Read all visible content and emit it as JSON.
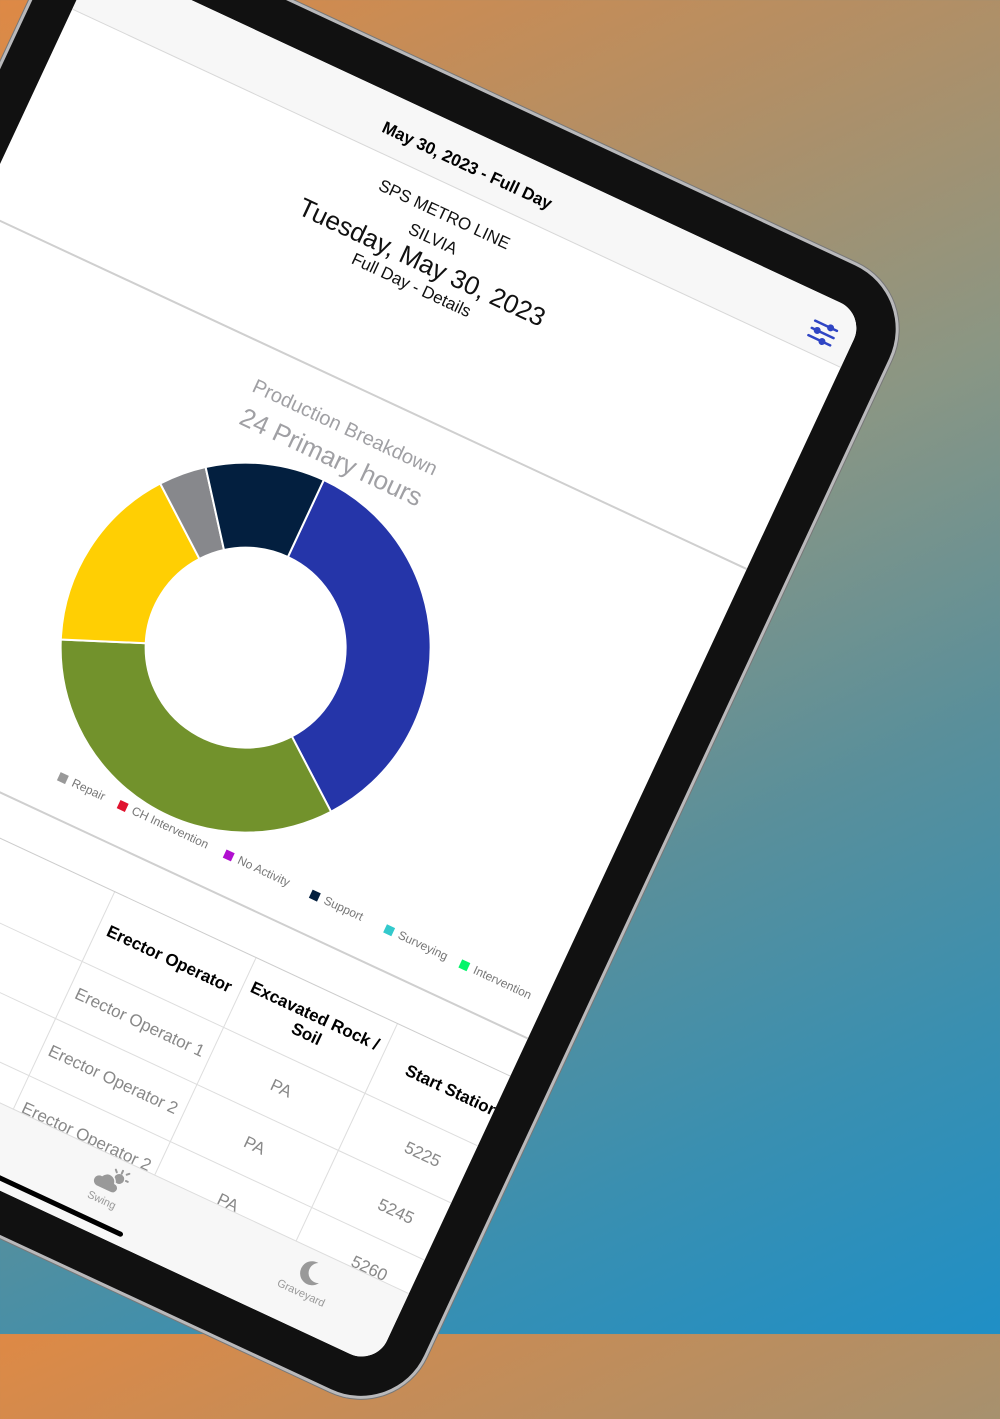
{
  "nav": {
    "title": "May 30, 2023 - Full Day",
    "filter_icon": "sliders-icon"
  },
  "header": {
    "project": "SPS METRO LINE",
    "machine": "SILVIA",
    "date": "Tuesday, May 30, 2023",
    "subtitle": "Full Day - Details"
  },
  "chart_data": {
    "type": "pie",
    "title": "Production Breakdown",
    "subtitle": "24 Primary hours",
    "total_hours": 24,
    "slices": [
      {
        "label": "",
        "value": 8.5,
        "color": "#2535a9"
      },
      {
        "label": "",
        "value": 8,
        "color": "#72922c"
      },
      {
        "label": "",
        "value": 4,
        "color": "#ffcf03"
      },
      {
        "label": "",
        "value": 1,
        "color": "#87888c"
      },
      {
        "label": "Support",
        "value": 2.5,
        "color": "#031f3f"
      }
    ],
    "legend": [
      {
        "label": "Repair",
        "color": "#999999"
      },
      {
        "label": "CH Intervention",
        "color": "#e0122e"
      },
      {
        "label": "No Activity",
        "color": "#b10fd0"
      },
      {
        "label": "Support",
        "color": "#031f3f"
      },
      {
        "label": "Surveying",
        "color": "#33c9cc"
      },
      {
        "label": "Intervention",
        "color": "#05f56a"
      }
    ],
    "legend_position": "bottom"
  },
  "table": {
    "headers": [
      "Erector Operator",
      "Excavated Rock / Soil",
      "Start Station"
    ],
    "rows": [
      [
        "Erector Operator 1",
        "PA",
        "5225"
      ],
      [
        "Erector Operator 2",
        "PA",
        "5245"
      ],
      [
        "Erector Operator 2",
        "PA",
        "5260"
      ]
    ]
  },
  "tabs": [
    {
      "label": "Swing",
      "icon": "cloud-sun-icon"
    },
    {
      "label": "Graveyard",
      "icon": "moon-icon"
    }
  ]
}
